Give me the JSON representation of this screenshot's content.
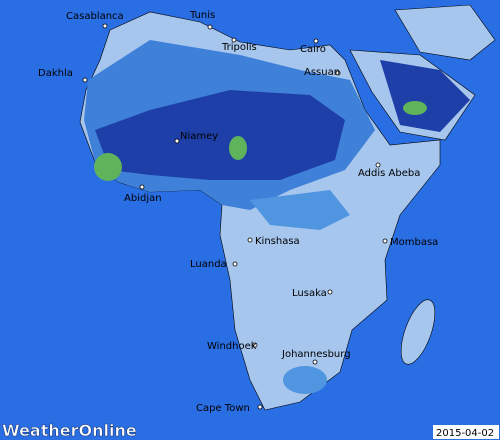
{
  "map": {
    "cities": [
      "Casablanca",
      "Tunis",
      "Tripolis",
      "Cairo",
      "Assuan",
      "Dakhla",
      "Niamey",
      "Addis Abeba",
      "Abidjan",
      "Kinshasa",
      "Mombasa",
      "Luanda",
      "Lusaka",
      "Windhoek",
      "Johannesburg",
      "Cape Town"
    ],
    "logo": "WeatherOnline",
    "date": "2015-04-02"
  }
}
